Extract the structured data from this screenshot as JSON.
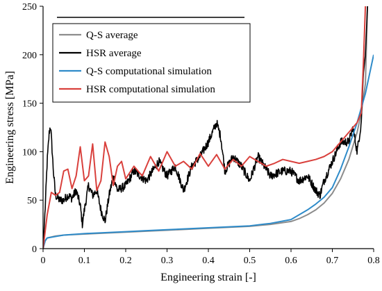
{
  "chart_data": {
    "type": "line",
    "xlabel": "Engineering  strain [-]",
    "ylabel": "Engineering  stress [MPa]",
    "xlim": [
      0,
      0.8
    ],
    "ylim": [
      0,
      250
    ],
    "xticks": [
      "0",
      "0.1",
      "0.2",
      "0.3",
      "0.4",
      "0.5",
      "0.6",
      "0.7",
      "0.8"
    ],
    "yticks": [
      "0",
      "50",
      "100",
      "150",
      "200",
      "250"
    ],
    "grid": false,
    "legend_placement": "top-left",
    "series": [
      {
        "name": "Q-S average",
        "color": "#8c8c8c",
        "style": "smooth",
        "x": [
          0,
          0.005,
          0.01,
          0.03,
          0.05,
          0.1,
          0.15,
          0.2,
          0.25,
          0.3,
          0.35,
          0.4,
          0.45,
          0.5,
          0.55,
          0.6,
          0.62,
          0.64,
          0.66,
          0.68,
          0.7,
          0.72,
          0.74,
          0.76,
          0.77,
          0.78,
          0.785
        ],
        "values": [
          0,
          8,
          11,
          13,
          14,
          15,
          16,
          17,
          18,
          19,
          20,
          21,
          22,
          23,
          25,
          28,
          31,
          35,
          40,
          47,
          57,
          72,
          92,
          120,
          140,
          170,
          250
        ]
      },
      {
        "name": "HSR average",
        "color": "#000000",
        "style": "noisy",
        "x": [
          0,
          0.005,
          0.01,
          0.015,
          0.018,
          0.02,
          0.025,
          0.03,
          0.04,
          0.05,
          0.06,
          0.07,
          0.08,
          0.09,
          0.095,
          0.1,
          0.11,
          0.12,
          0.13,
          0.14,
          0.15,
          0.16,
          0.17,
          0.18,
          0.2,
          0.22,
          0.25,
          0.28,
          0.3,
          0.32,
          0.34,
          0.36,
          0.38,
          0.4,
          0.42,
          0.43,
          0.44,
          0.46,
          0.48,
          0.5,
          0.52,
          0.55,
          0.58,
          0.6,
          0.62,
          0.64,
          0.66,
          0.67,
          0.68,
          0.7,
          0.72,
          0.74,
          0.75,
          0.76,
          0.77,
          0.775,
          0.78,
          0.785
        ],
        "values": [
          0,
          40,
          90,
          120,
          127,
          115,
          80,
          55,
          50,
          50,
          55,
          52,
          60,
          45,
          25,
          40,
          65,
          55,
          60,
          40,
          28,
          55,
          75,
          60,
          65,
          80,
          70,
          90,
          75,
          85,
          60,
          85,
          95,
          110,
          130,
          115,
          80,
          95,
          85,
          70,
          95,
          75,
          80,
          80,
          70,
          75,
          60,
          55,
          70,
          90,
          110,
          110,
          125,
          100,
          130,
          180,
          200,
          250
        ]
      },
      {
        "name": "Q-S computational simulation",
        "color": "#2e8bc9",
        "style": "smooth",
        "x": [
          0,
          0.005,
          0.01,
          0.03,
          0.05,
          0.1,
          0.15,
          0.2,
          0.25,
          0.3,
          0.35,
          0.4,
          0.45,
          0.5,
          0.55,
          0.6,
          0.62,
          0.64,
          0.66,
          0.68,
          0.7,
          0.72,
          0.74,
          0.76,
          0.78,
          0.8
        ],
        "values": [
          0,
          8,
          11,
          12.5,
          14,
          15.5,
          16.5,
          17.5,
          18.5,
          19.5,
          20.5,
          21.5,
          22.5,
          23.5,
          26,
          30,
          35,
          40,
          46,
          53,
          63,
          82,
          105,
          130,
          160,
          200
        ]
      },
      {
        "name": "HSR computational simulation",
        "color": "#d9403c",
        "style": "smooth",
        "x": [
          0,
          0.01,
          0.02,
          0.03,
          0.04,
          0.05,
          0.06,
          0.07,
          0.08,
          0.09,
          0.1,
          0.11,
          0.12,
          0.13,
          0.14,
          0.15,
          0.16,
          0.17,
          0.18,
          0.19,
          0.2,
          0.22,
          0.24,
          0.26,
          0.28,
          0.3,
          0.32,
          0.34,
          0.36,
          0.38,
          0.4,
          0.42,
          0.44,
          0.46,
          0.48,
          0.5,
          0.52,
          0.54,
          0.56,
          0.58,
          0.6,
          0.62,
          0.64,
          0.66,
          0.68,
          0.7,
          0.72,
          0.74,
          0.75,
          0.76,
          0.77,
          0.775,
          0.78
        ],
        "values": [
          0,
          35,
          58,
          55,
          58,
          80,
          82,
          62,
          75,
          105,
          70,
          75,
          108,
          60,
          70,
          110,
          95,
          65,
          85,
          90,
          72,
          85,
          75,
          95,
          80,
          100,
          85,
          90,
          82,
          98,
          85,
          97,
          82,
          92,
          85,
          95,
          90,
          85,
          88,
          92,
          90,
          88,
          90,
          92,
          95,
          100,
          110,
          120,
          125,
          130,
          140,
          190,
          250
        ]
      }
    ]
  }
}
